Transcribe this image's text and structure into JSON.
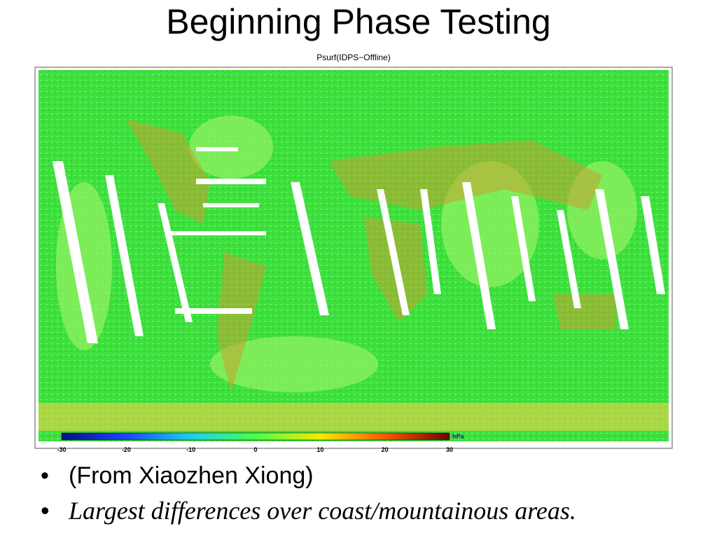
{
  "header": {
    "title": "Beginning Phase Testing"
  },
  "figure": {
    "title": "Psurf(IDPS−Offline)",
    "colorbar": {
      "ticks": [
        -30,
        -20,
        -10,
        0,
        10,
        20,
        30
      ],
      "unit": "hPa"
    }
  },
  "bullets": [
    "(From Xiaozhen Xiong)",
    "Largest differences over coast/mountainous areas."
  ]
}
